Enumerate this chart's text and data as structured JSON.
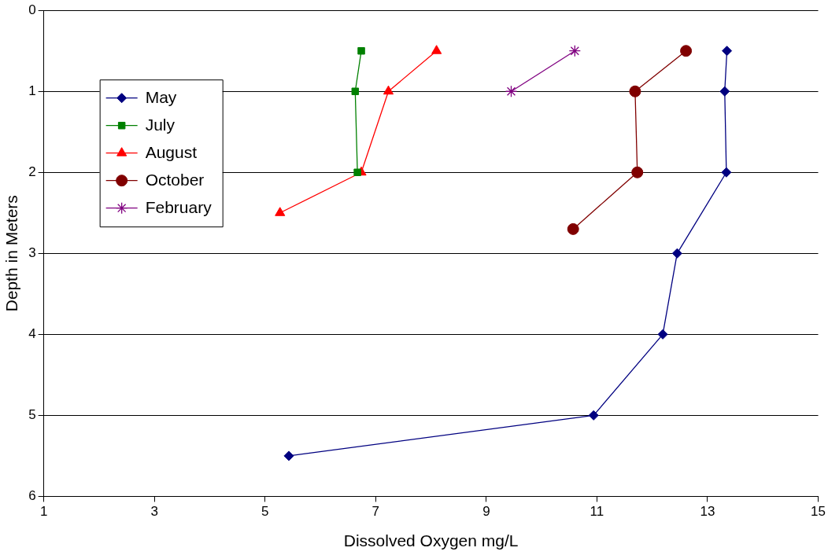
{
  "chart_data": {
    "type": "line",
    "xlabel": "Dissolved Oxygen mg/L",
    "ylabel": "Depth in Meters",
    "xlim": [
      1,
      15
    ],
    "xticks": [
      1,
      3,
      5,
      7,
      9,
      11,
      13,
      15
    ],
    "ylim": [
      6,
      0
    ],
    "yticks": [
      0,
      1,
      2,
      3,
      4,
      5,
      6
    ],
    "grid": "y",
    "legend": "top left",
    "series": [
      {
        "name": "May",
        "color": "#000080",
        "marker": "diamond",
        "x": [
          13.35,
          13.31,
          13.34,
          12.45,
          12.19,
          10.94,
          5.43
        ],
        "values": [
          0.5,
          1,
          2,
          3,
          4,
          5,
          5.5
        ]
      },
      {
        "name": "July",
        "color": "#008000",
        "marker": "square",
        "x": [
          6.74,
          6.63,
          6.67
        ],
        "values": [
          0.5,
          1,
          2
        ]
      },
      {
        "name": "August",
        "color": "#ff0000",
        "marker": "triangle",
        "x": [
          8.1,
          7.23,
          6.74,
          5.27
        ],
        "values": [
          0.5,
          1,
          2,
          2.5
        ]
      },
      {
        "name": "October",
        "color": "#800000",
        "marker": "circle",
        "x": [
          12.61,
          11.69,
          11.73,
          10.57
        ],
        "values": [
          0.5,
          1,
          2,
          2.7
        ]
      },
      {
        "name": "February",
        "color": "#800080",
        "marker": "cross",
        "x": [
          10.6,
          9.45
        ],
        "values": [
          0.5,
          1
        ]
      }
    ]
  }
}
